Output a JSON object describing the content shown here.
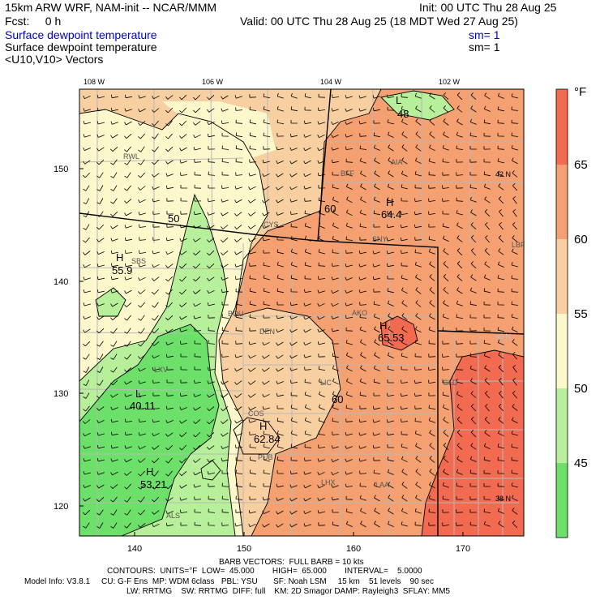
{
  "header": {
    "model_line": "15km ARW WRF, NAM-init -- NCAR/MMM",
    "init_line": "Init: 00 UTC Thu 28 Aug 25",
    "fcst_line": "Fcst:     0 h",
    "valid_line": "Valid: 00 UTC Thu 28 Aug 25 (18 MDT Wed 27 Aug 25)",
    "field1": "Surface dewpoint temperature",
    "field1_sm": "sm= 1",
    "field2": "Surface dewpoint temperature",
    "field2_sm": "sm= 1",
    "field3": "<U10,V10> Vectors"
  },
  "map": {
    "lon_labels": [
      "108 W",
      "106 W",
      "104 W",
      "102 W"
    ],
    "lat_labels": [
      "42 N",
      "40 N",
      "38 N"
    ],
    "x_ticks": [
      "140",
      "150",
      "160",
      "170"
    ],
    "y_ticks": [
      "150",
      "140",
      "130",
      "120"
    ],
    "stations": [
      "RWL",
      "BFF",
      "AIA",
      "CYS",
      "SNY",
      "SBS",
      "BOU",
      "DEN",
      "AKO",
      "LBF",
      "LXV",
      "LIC",
      "GLD",
      "COS",
      "PUB",
      "LHX",
      "LAA",
      "ALS"
    ],
    "extrema": [
      {
        "type": "L",
        "value": "48"
      },
      {
        "type": "H",
        "value": "64.4"
      },
      {
        "type": "H",
        "value": "55.9"
      },
      {
        "type": "H",
        "value": "65.53"
      },
      {
        "type": "L",
        "value": "40.11"
      },
      {
        "type": "H",
        "value": "62.84"
      },
      {
        "type": "H",
        "value": "53.21"
      }
    ],
    "contour_labels": [
      "50",
      "60",
      "60"
    ]
  },
  "colorbar": {
    "unit": "°F",
    "labels": [
      "65",
      "60",
      "55",
      "50",
      "45"
    ],
    "colors": [
      "#f26a4f",
      "#f4a070",
      "#f8cfa0",
      "#fdf7cc",
      "#b8ef9a",
      "#6de06a"
    ]
  },
  "footer": {
    "barb_line": "BARB VECTORS:  FULL BARB = 10 kts",
    "contour_line": "CONTOURS:  UNITS=°F  LOW=  45.000        HIGH=  65.000        INTERVAL=    5.0000",
    "model_info": "Model Info: V3.8.1     CU: G-F Ens  MP: WDM 6class   PBL: YSU       SF: Noah LSM     15 km    51 levels    90 sec",
    "model_info2": "LW: RRTMG    SW: RRTMG  DIFF: full    KM: 2D Smagor DAMP: Rayleigh3  SFLAY: MM5"
  }
}
